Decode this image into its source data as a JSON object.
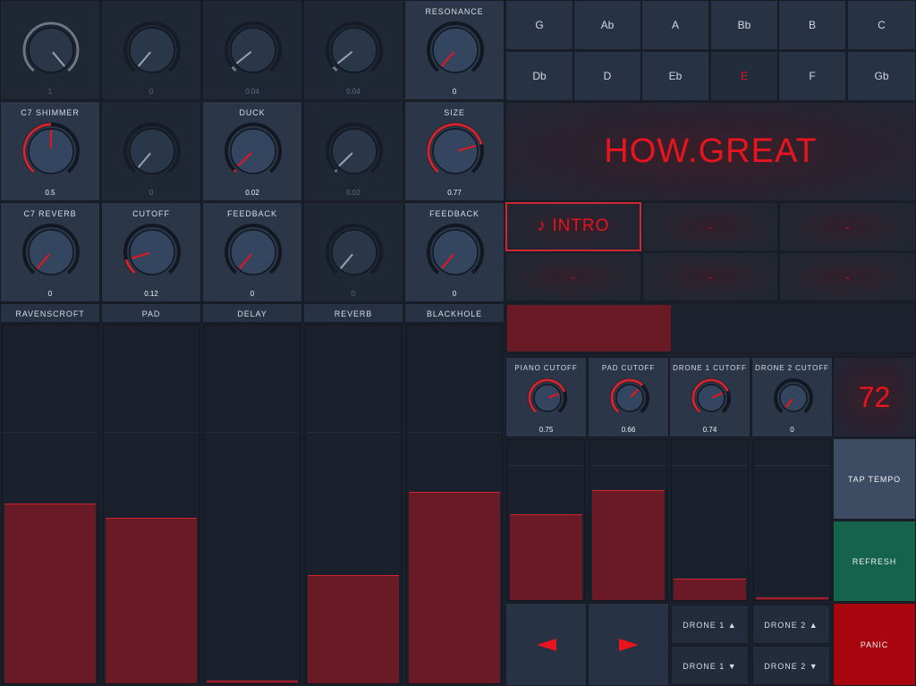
{
  "knob_grid": [
    {
      "label": "",
      "value": "1",
      "level": 1.0,
      "active": false,
      "highlight": false
    },
    {
      "label": "",
      "value": "0",
      "level": 0,
      "active": false,
      "highlight": false
    },
    {
      "label": "",
      "value": "0.04",
      "level": 0.04,
      "active": false,
      "highlight": false
    },
    {
      "label": "",
      "value": "0.04",
      "level": 0.04,
      "active": false,
      "highlight": false
    },
    {
      "label": "RESONANCE",
      "value": "0",
      "level": 0,
      "active": true,
      "highlight": true
    },
    {
      "label": "C7 SHIMMER",
      "value": "0.5",
      "level": 0.5,
      "active": true,
      "highlight": true
    },
    {
      "label": "",
      "value": "0",
      "level": 0,
      "active": false,
      "highlight": false
    },
    {
      "label": "DUCK",
      "value": "0.02",
      "level": 0.02,
      "active": true,
      "highlight": true
    },
    {
      "label": "",
      "value": "0.02",
      "level": 0.02,
      "active": false,
      "highlight": false
    },
    {
      "label": "SIZE",
      "value": "0.77",
      "level": 0.77,
      "active": true,
      "highlight": true
    },
    {
      "label": "C7 REVERB",
      "value": "0",
      "level": 0,
      "active": true,
      "highlight": true
    },
    {
      "label": "CUTOFF",
      "value": "0.12",
      "level": 0.12,
      "active": true,
      "highlight": true
    },
    {
      "label": "FEEDBACK",
      "value": "0",
      "level": 0,
      "active": true,
      "highlight": true
    },
    {
      "label": "",
      "value": "0",
      "level": 0,
      "active": false,
      "highlight": false
    },
    {
      "label": "FEEDBACK",
      "value": "0",
      "level": 0,
      "active": true,
      "highlight": true
    }
  ],
  "faders": [
    {
      "label": "RAVENSCROFT",
      "level": 0.5
    },
    {
      "label": "PAD",
      "level": 0.46
    },
    {
      "label": "DELAY",
      "level": 0.0
    },
    {
      "label": "REVERB",
      "level": 0.3
    },
    {
      "label": "BLACKHOLE",
      "level": 0.53
    }
  ],
  "keys": [
    "G",
    "Ab",
    "A",
    "Bb",
    "B",
    "C",
    "Db",
    "D",
    "Eb",
    "E",
    "F",
    "Gb"
  ],
  "selected_key": "E",
  "song_title": "HOW.GREAT",
  "sections": [
    "♪ INTRO",
    "-",
    "-",
    "-",
    "-",
    "-"
  ],
  "progress": 0.4,
  "cutoff_knobs": [
    {
      "label": "PIANO CUTOFF",
      "value": "0.75",
      "level": 0.75
    },
    {
      "label": "PAD CUTOFF",
      "value": "0.66",
      "level": 0.66
    },
    {
      "label": "DRONE 1 CUTOFF",
      "value": "0.74",
      "level": 0.74
    },
    {
      "label": "DRONE 2 CUTOFF",
      "value": "0",
      "level": 0
    }
  ],
  "tempo": "72",
  "mini_faders": [
    0.53,
    0.68,
    0.13,
    0.0
  ],
  "buttons": {
    "tap_tempo": "TAP TEMPO",
    "refresh": "REFRESH",
    "panic": "PANIC"
  },
  "drone_buttons": {
    "drone1_up": "DRONE 1 ▲",
    "drone2_up": "DRONE 2 ▲",
    "drone1_down": "DRONE 1 ▼",
    "drone2_down": "DRONE 2 ▼"
  },
  "colors": {
    "accent": "#e8141e",
    "fill": "#6a1a24",
    "tap": "#3d4b63",
    "refresh": "#15634a",
    "panic": "#a8060e"
  },
  "icons": {
    "prev": "triangle-left-icon",
    "next": "triangle-right-icon"
  }
}
